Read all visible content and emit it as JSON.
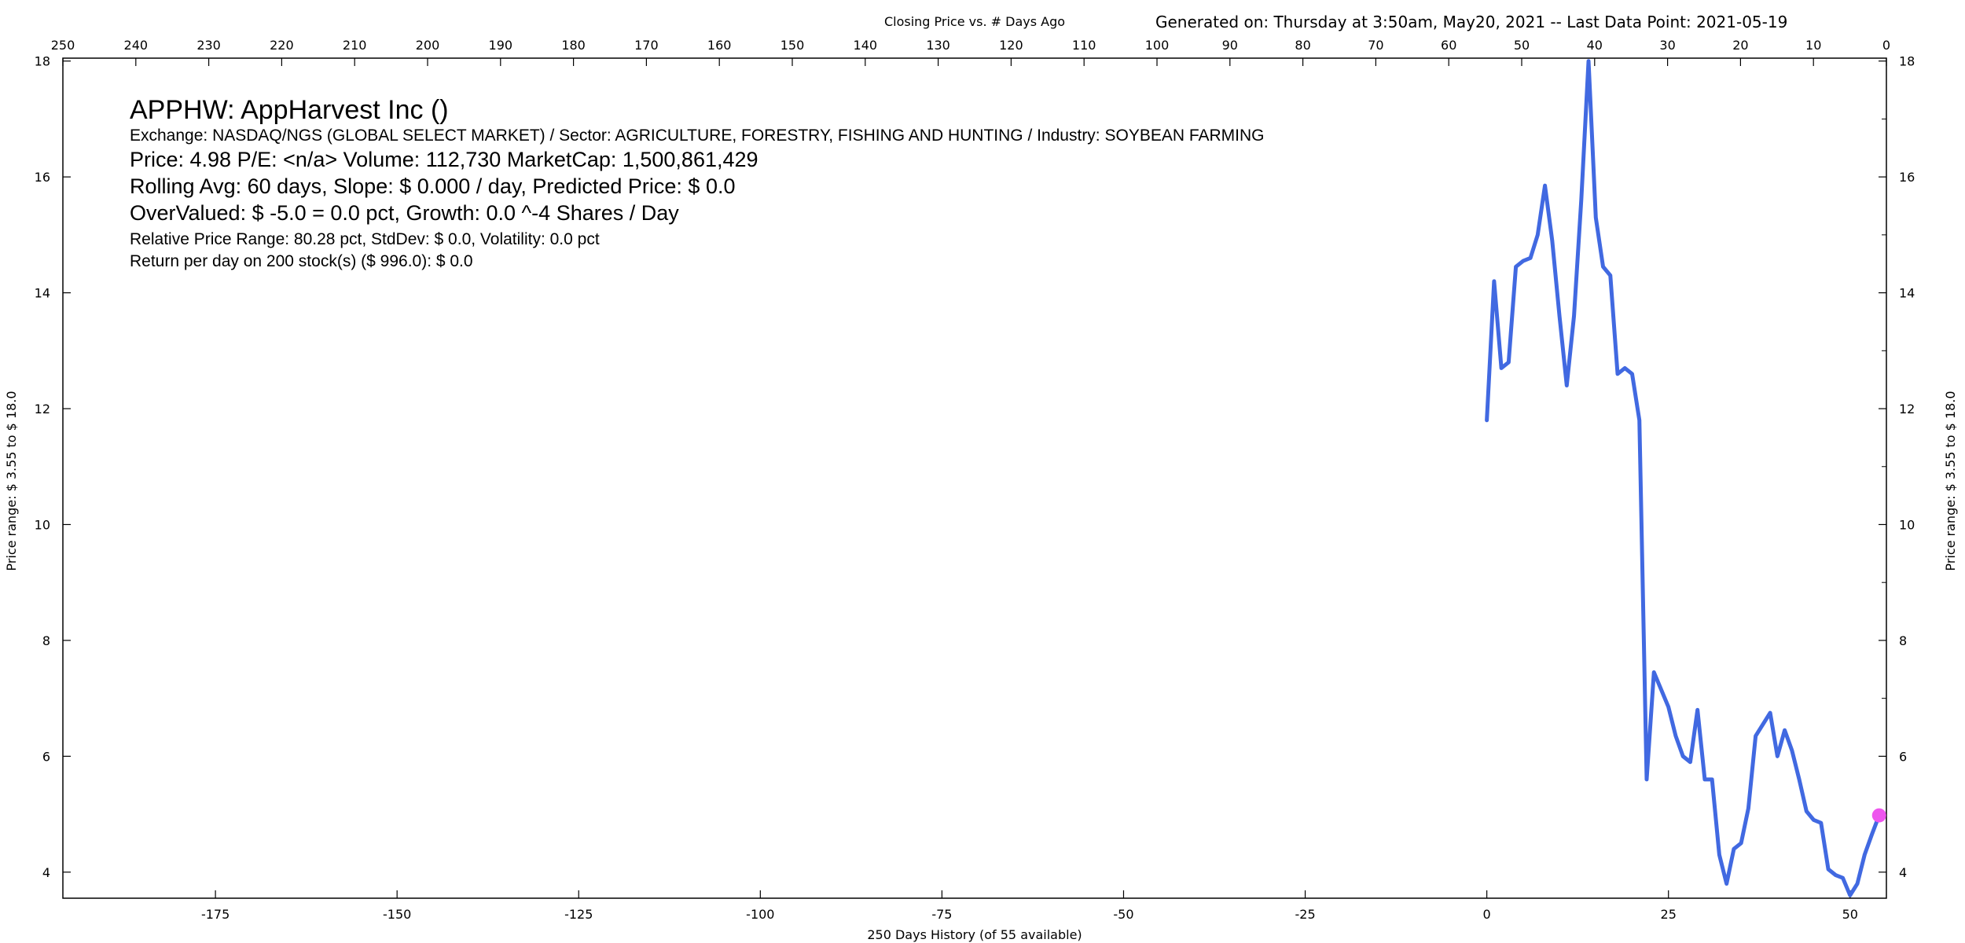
{
  "header": {
    "subtitle": "Closing Price vs. # Days Ago",
    "generated": "Generated on:  Thursday at  3:50am, May20, 2021  --  Last Data Point:  2021-05-19"
  },
  "info": {
    "title": "APPHW:  AppHarvest Inc  ()",
    "exchange": "Exchange: NASDAQ/NGS (GLOBAL SELECT MARKET)  /  Sector: AGRICULTURE, FORESTRY, FISHING AND HUNTING  /  Industry: SOYBEAN FARMING",
    "price": "Price: 4.98  P/E: <n/a> Volume: 112,730  MarketCap: 1,500,861,429",
    "rolling": "Rolling Avg: 60 days, Slope: $ 0.000 / day, Predicted Price: $ 0.0",
    "overvalued": "OverValued: $ -5.0 = 0.0 pct,  Growth: 0.0 ^-4 Shares / Day",
    "range": "Relative Price Range: 80.28 pct, StdDev: $ 0.0, Volatility: 0.0 pct",
    "return": "Return per day on 200 stock(s) ($ 996.0): $ 0.0"
  },
  "chart_data": {
    "type": "line",
    "xlabel": "250 Days History (of 55 available)",
    "ylabel_left": "Price range:  $  3.55  to  $  18.0",
    "ylabel_right": "Price range: $ 3.55  to  $ 18.0",
    "xlim": [
      -196,
      55
    ],
    "ylim": [
      3.55,
      18.05
    ],
    "x_ticks": [
      -175,
      -150,
      -125,
      -100,
      -75,
      -50,
      -25,
      0,
      25,
      50
    ],
    "top_ticks": [
      250,
      240,
      230,
      220,
      210,
      200,
      190,
      180,
      170,
      160,
      150,
      140,
      130,
      120,
      110,
      100,
      90,
      80,
      70,
      60,
      50,
      40,
      30,
      20,
      10,
      0
    ],
    "y_ticks": [
      4,
      6,
      8,
      10,
      12,
      14,
      16,
      18
    ],
    "colors": {
      "line": "#4169e1",
      "marker": "#ee55ee"
    },
    "series": [
      {
        "x": [
          0,
          1,
          2,
          3,
          4,
          5,
          6,
          7,
          8,
          9,
          10,
          11,
          12,
          13,
          14,
          15,
          16,
          17,
          18,
          19,
          20,
          21,
          22,
          23,
          24,
          25,
          26,
          27,
          28,
          29,
          30,
          31,
          32,
          33,
          34,
          35,
          36,
          37,
          38,
          39,
          40,
          41,
          42,
          43,
          44,
          45,
          46,
          47,
          48,
          49,
          50,
          51,
          52,
          53,
          54
        ],
        "values": [
          11.8,
          14.2,
          12.7,
          12.8,
          14.45,
          14.55,
          14.6,
          15.0,
          15.85,
          14.9,
          13.6,
          12.4,
          13.6,
          15.6,
          18.0,
          15.3,
          14.45,
          14.3,
          12.6,
          12.7,
          12.6,
          11.8,
          5.6,
          7.45,
          7.15,
          6.85,
          6.35,
          6.0,
          5.9,
          6.8,
          5.6,
          5.6,
          4.3,
          3.8,
          4.4,
          4.5,
          5.1,
          6.35,
          6.55,
          6.75,
          6.0,
          6.45,
          6.1,
          5.6,
          5.05,
          4.9,
          4.85,
          4.05,
          3.95,
          3.9,
          3.6,
          3.8,
          4.3,
          4.65,
          4.98
        ]
      }
    ],
    "last_point": {
      "x": 54,
      "y": 4.98
    }
  }
}
